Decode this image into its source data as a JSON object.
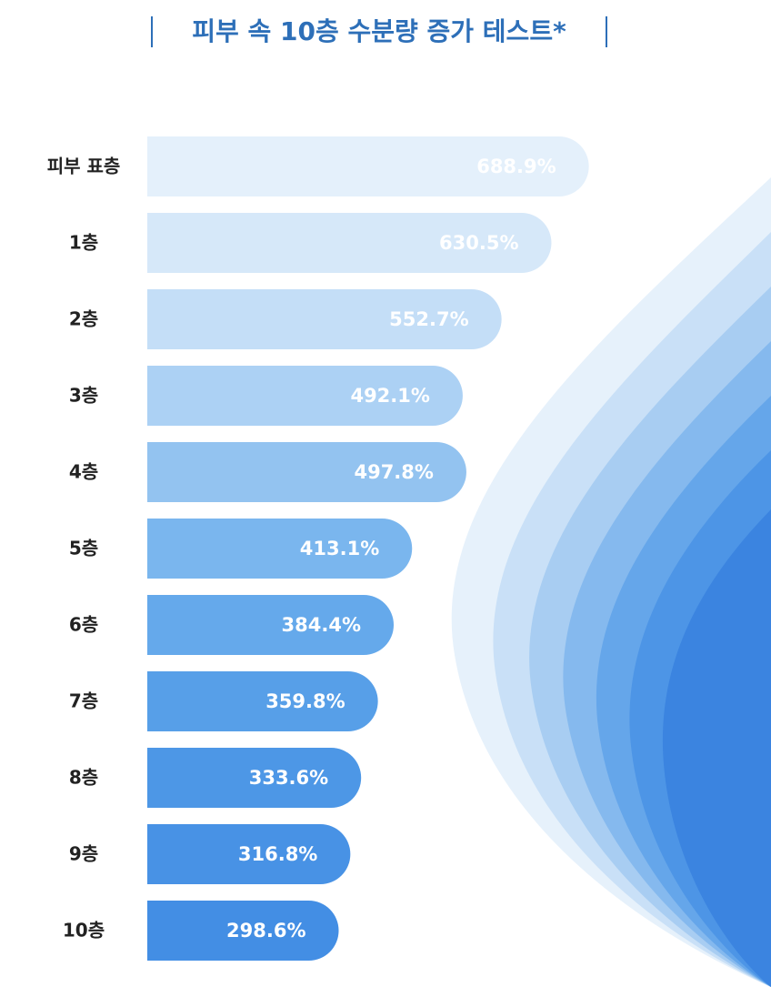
{
  "chart_data": {
    "type": "bar",
    "orientation": "horizontal",
    "title": "피부 속 10층 수분량 증가 테스트*",
    "categories": [
      "피부 표층",
      "1층",
      "2층",
      "3층",
      "4층",
      "5층",
      "6층",
      "7층",
      "8층",
      "9층",
      "10층"
    ],
    "values": [
      688.9,
      630.5,
      552.7,
      492.1,
      497.8,
      413.1,
      384.4,
      359.8,
      333.6,
      316.8,
      298.6
    ],
    "value_labels": [
      "688.9%",
      "630.5%",
      "552.7%",
      "492.1%",
      "497.8%",
      "413.1%",
      "384.4%",
      "359.8%",
      "333.6%",
      "316.8%",
      "298.6%"
    ],
    "colors": [
      "#e4f0fb",
      "#d6e8f9",
      "#c4def7",
      "#acd1f4",
      "#93c3f0",
      "#7ab6ee",
      "#65a9eb",
      "#579fe8",
      "#4d97e6",
      "#4892e5",
      "#438ee4"
    ]
  }
}
